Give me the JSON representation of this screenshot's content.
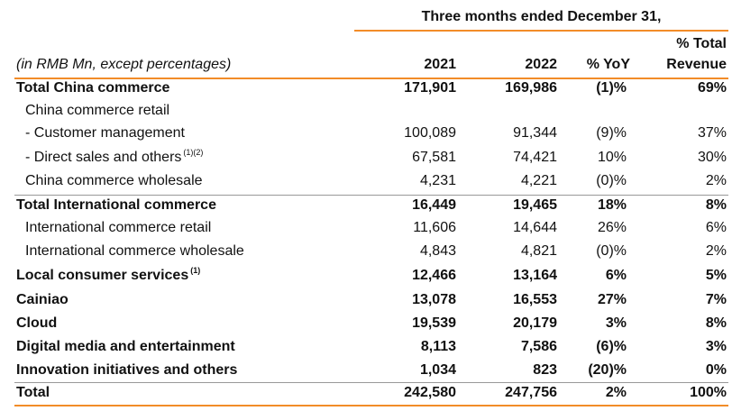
{
  "header": {
    "period": "Three months ended December 31,",
    "unit_note": "(in RMB Mn, except percentages)",
    "col_2021": "2021",
    "col_2022": "2022",
    "col_yoy": "% YoY",
    "col_rev_line1": "% Total",
    "col_rev_line2": "Revenue"
  },
  "rows": [
    {
      "label": "Total China commerce",
      "v2021": "171,901",
      "v2022": "169,986",
      "yoy": "(1)%",
      "rev": "69%",
      "sup": ""
    },
    {
      "label": "China commerce retail",
      "v2021": "",
      "v2022": "",
      "yoy": "",
      "rev": "",
      "sup": ""
    },
    {
      "label": "- Customer management",
      "v2021": "100,089",
      "v2022": "91,344",
      "yoy": "(9)%",
      "rev": "37%",
      "sup": ""
    },
    {
      "label": "- Direct sales and others",
      "v2021": "67,581",
      "v2022": "74,421",
      "yoy": "10%",
      "rev": "30%",
      "sup": "(1)(2)"
    },
    {
      "label": "China commerce wholesale",
      "v2021": "4,231",
      "v2022": "4,221",
      "yoy": "(0)%",
      "rev": "2%",
      "sup": ""
    },
    {
      "label": "Total International commerce",
      "v2021": "16,449",
      "v2022": "19,465",
      "yoy": "18%",
      "rev": "8%",
      "sup": ""
    },
    {
      "label": "International commerce retail",
      "v2021": "11,606",
      "v2022": "14,644",
      "yoy": "26%",
      "rev": "6%",
      "sup": ""
    },
    {
      "label": "International commerce wholesale",
      "v2021": "4,843",
      "v2022": "4,821",
      "yoy": "(0)%",
      "rev": "2%",
      "sup": ""
    },
    {
      "label": "Local consumer services",
      "v2021": "12,466",
      "v2022": "13,164",
      "yoy": "6%",
      "rev": "5%",
      "sup": "(1)"
    },
    {
      "label": "Cainiao",
      "v2021": "13,078",
      "v2022": "16,553",
      "yoy": "27%",
      "rev": "7%",
      "sup": ""
    },
    {
      "label": "Cloud",
      "v2021": "19,539",
      "v2022": "20,179",
      "yoy": "3%",
      "rev": "8%",
      "sup": ""
    },
    {
      "label": "Digital media and entertainment",
      "v2021": "8,113",
      "v2022": "7,586",
      "yoy": "(6)%",
      "rev": "3%",
      "sup": ""
    },
    {
      "label": "Innovation initiatives and others",
      "v2021": "1,034",
      "v2022": "823",
      "yoy": "(20)%",
      "rev": "0%",
      "sup": ""
    },
    {
      "label": "Total",
      "v2021": "242,580",
      "v2022": "247,756",
      "yoy": "2%",
      "rev": "100%",
      "sup": ""
    }
  ],
  "colors": {
    "accent_rule": "#f28c28",
    "row_rule": "#999999"
  }
}
